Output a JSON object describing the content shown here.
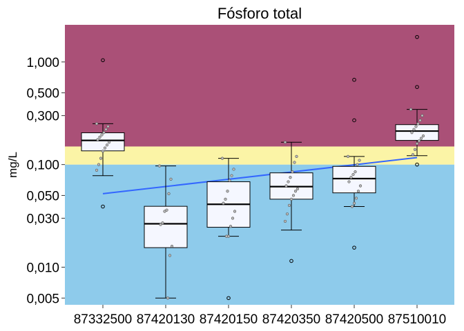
{
  "chart_data": {
    "type": "box",
    "title": "Fósforo total",
    "xlabel": "",
    "ylabel": "mg/L",
    "y_scale": "log",
    "ylim": [
      0.0043,
      2.3
    ],
    "y_ticks": [
      {
        "value": 1.0,
        "label": "1,000"
      },
      {
        "value": 0.5,
        "label": "0,500"
      },
      {
        "value": 0.3,
        "label": "0,300"
      },
      {
        "value": 0.1,
        "label": "0,100"
      },
      {
        "value": 0.05,
        "label": "0,050"
      },
      {
        "value": 0.03,
        "label": "0,030"
      },
      {
        "value": 0.01,
        "label": "0,010"
      },
      {
        "value": 0.005,
        "label": "0,005"
      }
    ],
    "bands": [
      {
        "from": 0.0043,
        "to": 0.1,
        "color": "#8ecbeb"
      },
      {
        "from": 0.1,
        "to": 0.15,
        "color": "#fbf4a6"
      },
      {
        "from": 0.15,
        "to": 2.3,
        "color": "#aa5077"
      }
    ],
    "categories": [
      "87332500",
      "87420130",
      "87420150",
      "87420350",
      "87420500",
      "87510010"
    ],
    "boxes": [
      {
        "q1": 0.136,
        "median": 0.172,
        "q3": 0.204,
        "whisker_low": 0.078,
        "whisker_high": 0.25,
        "outliers": [
          1.04,
          0.039
        ],
        "points": [
          0.25,
          0.235,
          0.22,
          0.205,
          0.195,
          0.185,
          0.175,
          0.165,
          0.155,
          0.145,
          0.135,
          0.115,
          0.1,
          0.088
        ]
      },
      {
        "q1": 0.0155,
        "median": 0.0265,
        "q3": 0.0392,
        "whisker_low": 0.005,
        "whisker_high": 0.097,
        "outliers": [],
        "points": [
          0.097,
          0.072,
          0.052,
          0.036,
          0.035,
          0.027,
          0.026,
          0.016,
          0.013,
          0.005
        ]
      },
      {
        "q1": 0.0245,
        "median": 0.041,
        "q3": 0.068,
        "whisker_low": 0.02,
        "whisker_high": 0.115,
        "outliers": [
          0.005
        ],
        "points": [
          0.115,
          0.09,
          0.078,
          0.07,
          0.055,
          0.046,
          0.042,
          0.035,
          0.03,
          0.025,
          0.02,
          0.02
        ]
      },
      {
        "q1": 0.046,
        "median": 0.061,
        "q3": 0.083,
        "whisker_low": 0.023,
        "whisker_high": 0.165,
        "outliers": [
          0.0115
        ],
        "points": [
          0.165,
          0.12,
          0.105,
          0.085,
          0.075,
          0.068,
          0.062,
          0.058,
          0.055,
          0.05,
          0.046,
          0.04,
          0.033,
          0.028
        ]
      },
      {
        "q1": 0.053,
        "median": 0.073,
        "q3": 0.096,
        "whisker_low": 0.039,
        "whisker_high": 0.12,
        "outliers": [
          0.67,
          0.27,
          0.0155
        ],
        "points": [
          0.12,
          0.11,
          0.1,
          0.085,
          0.08,
          0.075,
          0.068,
          0.062,
          0.055,
          0.047,
          0.042,
          0.039
        ]
      },
      {
        "q1": 0.172,
        "median": 0.212,
        "q3": 0.245,
        "whisker_low": 0.122,
        "whisker_high": 0.345,
        "outliers": [
          1.75,
          0.57,
          0.1
        ],
        "points": [
          0.345,
          0.3,
          0.27,
          0.25,
          0.235,
          0.22,
          0.205,
          0.19,
          0.18,
          0.17,
          0.16,
          0.14,
          0.125
        ]
      }
    ],
    "trend_line": {
      "color": "#3366ff",
      "from": {
        "category": "87332500",
        "value": 0.052
      },
      "to": {
        "category": "87510010",
        "value": 0.117
      }
    },
    "colors": {
      "box_fill": "#f5f7ff",
      "point_fill": "#b9b9b9"
    },
    "grid": false
  }
}
